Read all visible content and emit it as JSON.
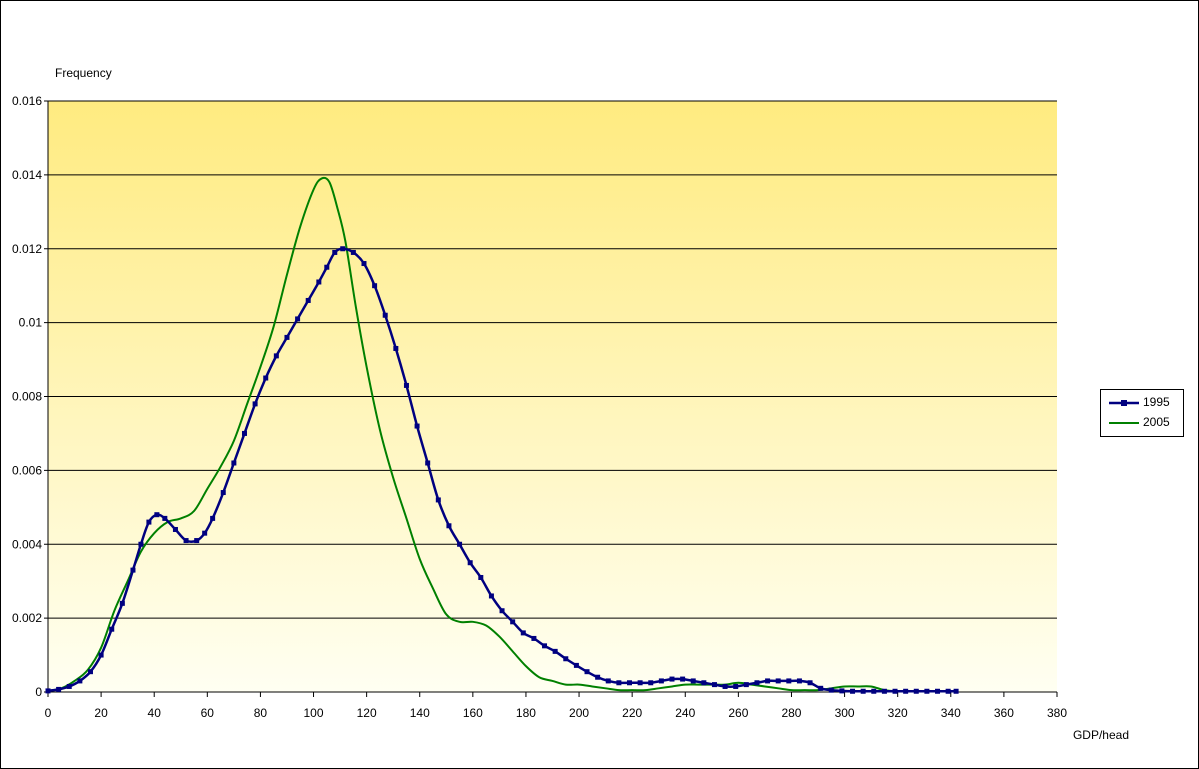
{
  "chart_data": {
    "type": "line",
    "title": "",
    "ylabel": "Frequency",
    "xlabel": "GDP/head",
    "xlim": [
      0,
      380
    ],
    "ylim": [
      0,
      0.016
    ],
    "xticks": [
      0,
      20,
      40,
      60,
      80,
      100,
      120,
      140,
      160,
      180,
      200,
      220,
      240,
      260,
      280,
      300,
      320,
      340,
      360,
      380
    ],
    "xtick_labels": [
      "0",
      "20",
      "40",
      "60",
      "80",
      "100",
      "120",
      "140",
      "160",
      "180",
      "200",
      "220",
      "240",
      "260",
      "280",
      "300",
      "320",
      "340",
      "360",
      "380"
    ],
    "yticks": [
      0,
      0.002,
      0.004,
      0.006,
      0.008,
      0.01,
      0.012,
      0.014,
      0.016
    ],
    "ytick_labels": [
      "0",
      "0.002",
      "0.004",
      "0.006",
      "0.008",
      "0.01",
      "0.012",
      "0.014",
      "0.016"
    ],
    "grid": "horizontal",
    "plot_background": "gradient yellow to pale yellow",
    "legend_position": "right",
    "series": [
      {
        "name": "1995",
        "color": "#000080",
        "marker": "square",
        "x": [
          0,
          4,
          8,
          12,
          16,
          20,
          24,
          28,
          32,
          35,
          38,
          41,
          44,
          48,
          52,
          56,
          59,
          62,
          66,
          70,
          74,
          78,
          82,
          86,
          90,
          94,
          98,
          102,
          105,
          108,
          111,
          115,
          119,
          123,
          127,
          131,
          135,
          139,
          143,
          147,
          151,
          155,
          159,
          163,
          167,
          171,
          175,
          179,
          183,
          187,
          191,
          195,
          199,
          203,
          207,
          211,
          215,
          219,
          223,
          227,
          231,
          235,
          239,
          243,
          247,
          251,
          255,
          259,
          263,
          267,
          271,
          275,
          279,
          283,
          287,
          291,
          295,
          299,
          303,
          307,
          311,
          315,
          319,
          323,
          327,
          331,
          335,
          339,
          342
        ],
        "values": [
          3e-05,
          7e-05,
          0.00015,
          0.0003,
          0.00055,
          0.001,
          0.0017,
          0.0024,
          0.0033,
          0.004,
          0.0046,
          0.0048,
          0.0047,
          0.0044,
          0.0041,
          0.0041,
          0.0043,
          0.0047,
          0.0054,
          0.0062,
          0.007,
          0.0078,
          0.0085,
          0.0091,
          0.0096,
          0.0101,
          0.0106,
          0.0111,
          0.0115,
          0.0119,
          0.012,
          0.0119,
          0.0116,
          0.011,
          0.0102,
          0.0093,
          0.0083,
          0.0072,
          0.0062,
          0.0052,
          0.0045,
          0.004,
          0.0035,
          0.0031,
          0.0026,
          0.0022,
          0.0019,
          0.0016,
          0.00145,
          0.00125,
          0.0011,
          0.0009,
          0.00072,
          0.00055,
          0.0004,
          0.0003,
          0.00025,
          0.00025,
          0.00025,
          0.00025,
          0.0003,
          0.00035,
          0.00035,
          0.0003,
          0.00025,
          0.0002,
          0.00015,
          0.00015,
          0.0002,
          0.00025,
          0.0003,
          0.0003,
          0.0003,
          0.0003,
          0.00025,
          0.0001,
          5e-05,
          3e-05,
          2e-05,
          2e-05,
          2e-05,
          2e-05,
          2e-05,
          2e-05,
          2e-05,
          2e-05,
          2e-05,
          2e-05,
          2e-05
        ]
      },
      {
        "name": "2005",
        "color": "#008000",
        "marker": "none",
        "x": [
          0,
          5,
          10,
          15,
          20,
          25,
          30,
          35,
          40,
          45,
          50,
          55,
          60,
          65,
          70,
          75,
          80,
          85,
          90,
          95,
          100,
          103,
          106,
          109,
          112,
          116,
          120,
          125,
          130,
          135,
          140,
          145,
          150,
          155,
          160,
          165,
          170,
          175,
          180,
          185,
          190,
          195,
          200,
          205,
          210,
          215,
          220,
          225,
          230,
          235,
          240,
          245,
          250,
          255,
          260,
          265,
          270,
          275,
          280,
          285,
          290,
          295,
          300,
          305,
          310,
          315,
          320,
          325,
          330
        ],
        "values": [
          3e-05,
          0.0001,
          0.0003,
          0.0006,
          0.0012,
          0.0022,
          0.003,
          0.0038,
          0.0043,
          0.0046,
          0.0047,
          0.0049,
          0.0055,
          0.0061,
          0.0068,
          0.0078,
          0.0088,
          0.0099,
          0.0113,
          0.0126,
          0.0136,
          0.0139,
          0.0138,
          0.0131,
          0.0122,
          0.0104,
          0.0088,
          0.0071,
          0.0058,
          0.0047,
          0.0036,
          0.0028,
          0.0021,
          0.0019,
          0.0019,
          0.0018,
          0.0015,
          0.0011,
          0.0007,
          0.0004,
          0.0003,
          0.0002,
          0.0002,
          0.00015,
          0.0001,
          5e-05,
          5e-05,
          5e-05,
          0.0001,
          0.00015,
          0.0002,
          0.0002,
          0.0002,
          0.0002,
          0.00025,
          0.0002,
          0.00015,
          0.0001,
          5e-05,
          5e-05,
          5e-05,
          0.0001,
          0.00015,
          0.00015,
          0.00015,
          5e-05,
          2e-05,
          2e-05,
          2e-05
        ]
      }
    ]
  }
}
